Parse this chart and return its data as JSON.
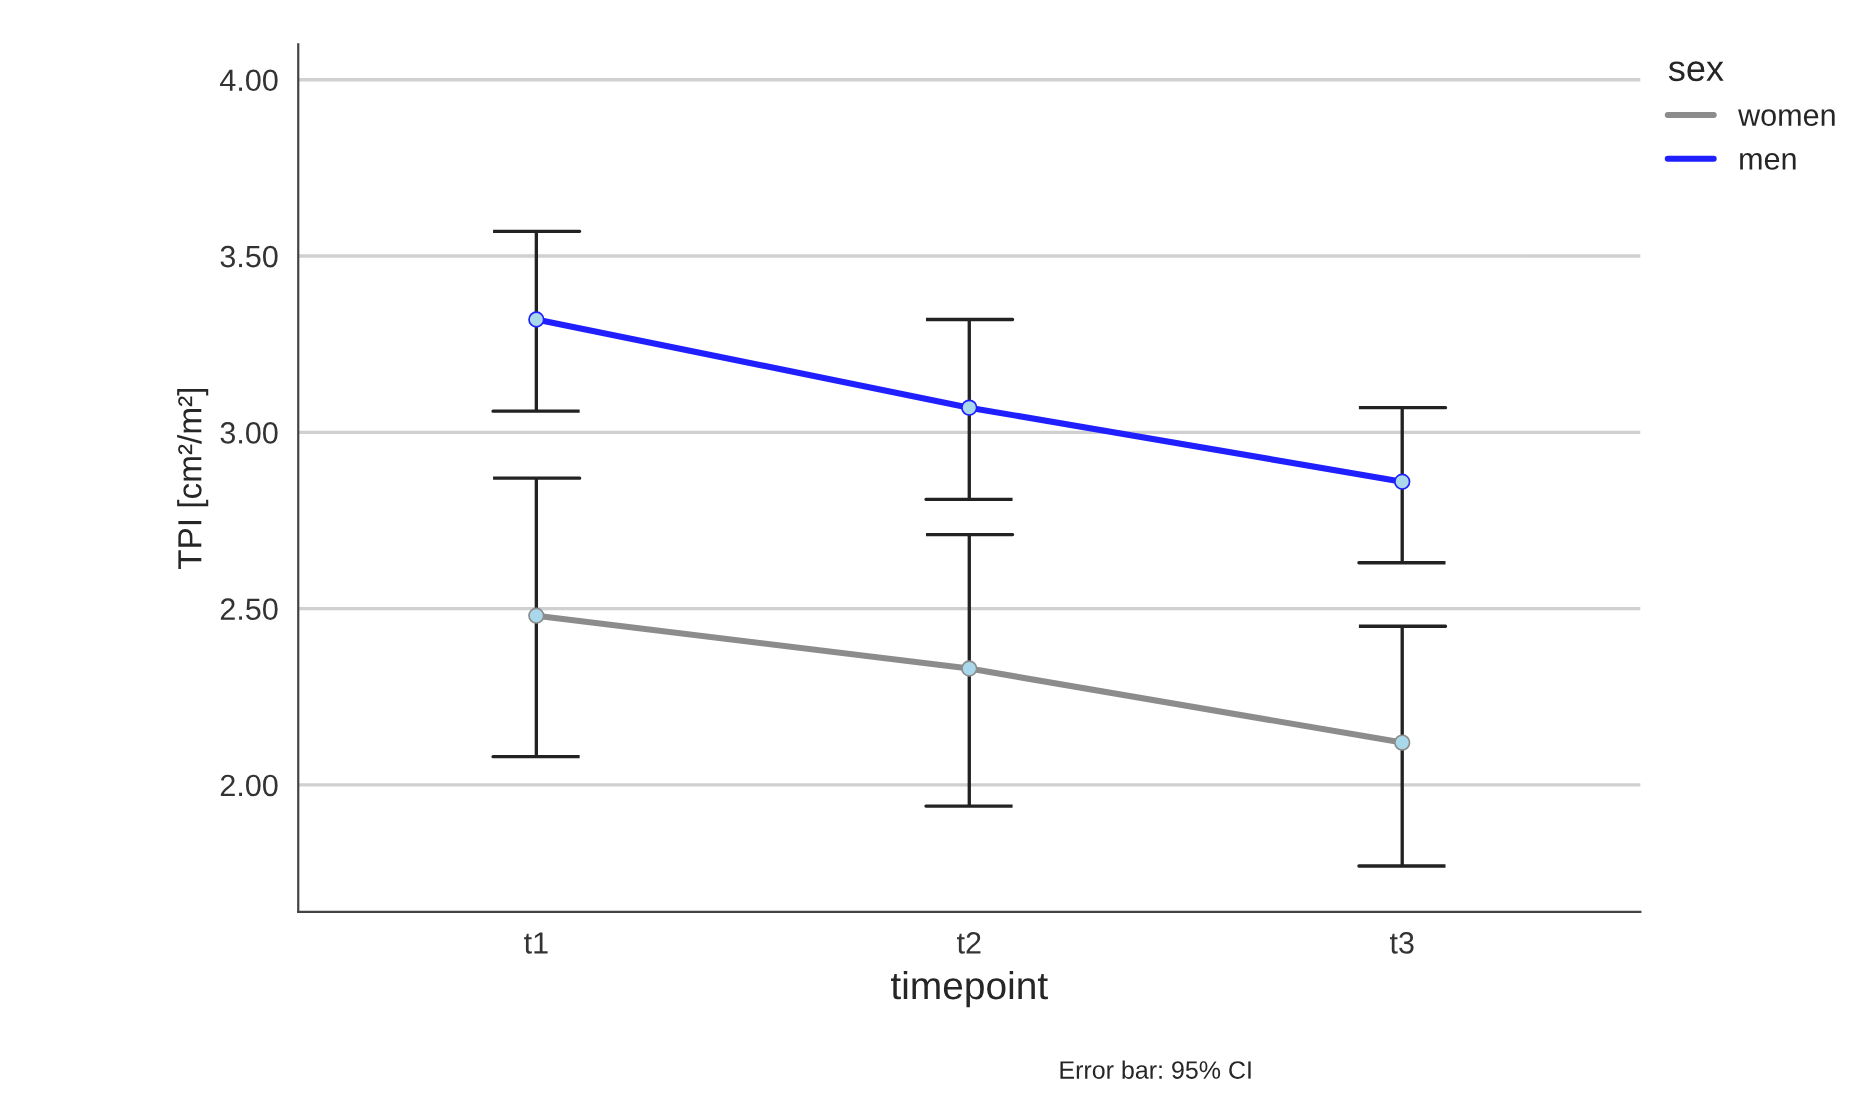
{
  "chart_data": {
    "type": "line",
    "xlabel": "timepoint",
    "ylabel": "TPI [cm²/m²]",
    "legend_title": "sex",
    "categories": [
      "t1",
      "t2",
      "t3"
    ],
    "series": [
      {
        "name": "women",
        "color": "#8c8c8c",
        "values": [
          2.48,
          2.33,
          2.12
        ],
        "errors": [
          [
            2.08,
            2.87
          ],
          [
            1.94,
            2.71
          ],
          [
            1.77,
            2.45
          ]
        ]
      },
      {
        "name": "men",
        "color": "#1f1fff",
        "values": [
          3.32,
          3.07,
          2.86
        ],
        "errors": [
          [
            3.06,
            3.57
          ],
          [
            2.81,
            3.32
          ],
          [
            2.63,
            3.07
          ]
        ]
      }
    ],
    "ylim": [
      1.64,
      4.1
    ],
    "yticks": [
      {
        "value": 2,
        "label": "2.00"
      },
      {
        "value": 2.5,
        "label": "2.50"
      },
      {
        "value": 3,
        "label": "3.00"
      },
      {
        "value": 3.5,
        "label": "3.50"
      },
      {
        "value": 4,
        "label": "4.00"
      }
    ],
    "grid": "y",
    "legend": "top right",
    "marker": "circle",
    "line_style": "solid",
    "annotations": [
      "Error bar: 95% CI"
    ]
  }
}
